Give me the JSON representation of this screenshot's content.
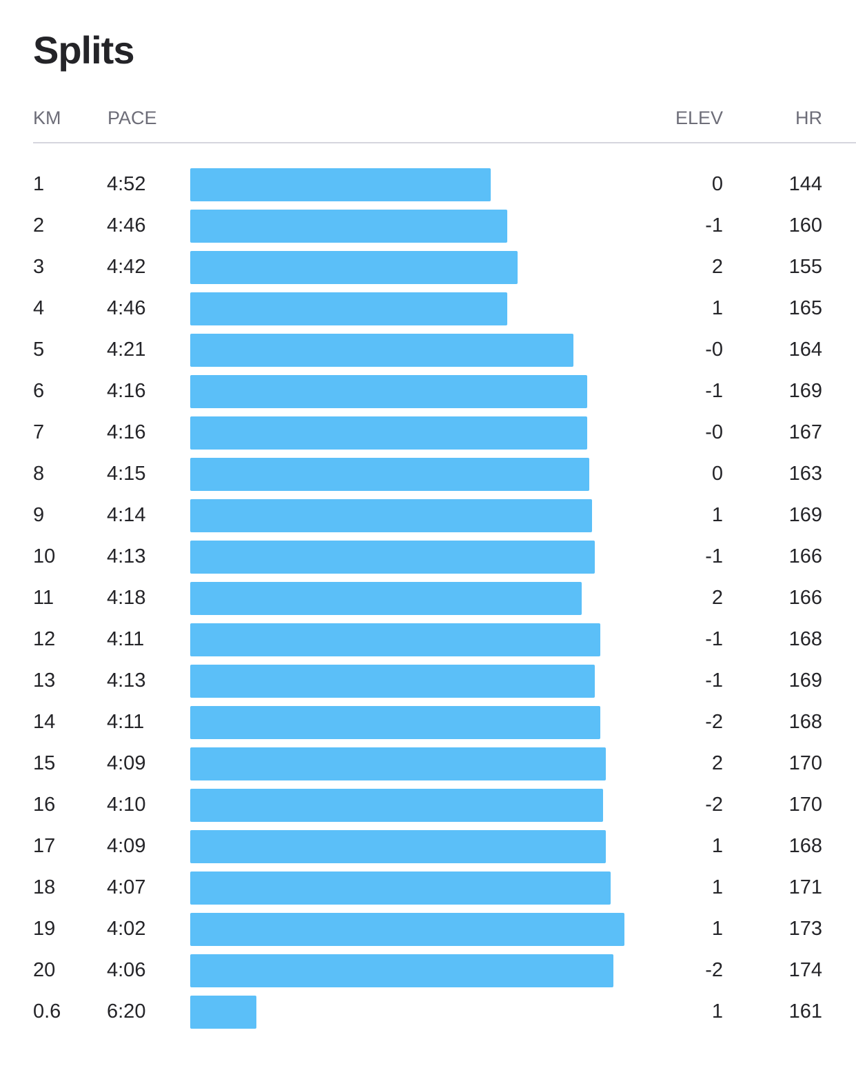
{
  "title": "Splits",
  "columns": {
    "km": "KM",
    "pace": "PACE",
    "elev": "ELEV",
    "hr": "HR"
  },
  "colors": {
    "bar": "#5bbff8",
    "text": "#242428",
    "muted": "#6d6d78",
    "divider": "#d5d5de"
  },
  "chart_data": {
    "type": "bar",
    "orientation": "horizontal",
    "categories": [
      "1",
      "2",
      "3",
      "4",
      "5",
      "6",
      "7",
      "8",
      "9",
      "10",
      "11",
      "12",
      "13",
      "14",
      "15",
      "16",
      "17",
      "18",
      "19",
      "20",
      "0.6"
    ],
    "pace_seconds": [
      292,
      286,
      282,
      286,
      261,
      256,
      256,
      255,
      254,
      253,
      258,
      251,
      253,
      251,
      249,
      250,
      249,
      247,
      242,
      246,
      380
    ],
    "series": [
      {
        "values": [
          292,
          286,
          282,
          286,
          261,
          256,
          256,
          255,
          254,
          253,
          258,
          251,
          253,
          251,
          249,
          250,
          249,
          247,
          242,
          246,
          380
        ]
      }
    ]
  },
  "splits": [
    {
      "km": "1",
      "pace": "4:52",
      "elev": "0",
      "hr": "144"
    },
    {
      "km": "2",
      "pace": "4:46",
      "elev": "-1",
      "hr": "160"
    },
    {
      "km": "3",
      "pace": "4:42",
      "elev": "2",
      "hr": "155"
    },
    {
      "km": "4",
      "pace": "4:46",
      "elev": "1",
      "hr": "165"
    },
    {
      "km": "5",
      "pace": "4:21",
      "elev": "-0",
      "hr": "164"
    },
    {
      "km": "6",
      "pace": "4:16",
      "elev": "-1",
      "hr": "169"
    },
    {
      "km": "7",
      "pace": "4:16",
      "elev": "-0",
      "hr": "167"
    },
    {
      "km": "8",
      "pace": "4:15",
      "elev": "0",
      "hr": "163"
    },
    {
      "km": "9",
      "pace": "4:14",
      "elev": "1",
      "hr": "169"
    },
    {
      "km": "10",
      "pace": "4:13",
      "elev": "-1",
      "hr": "166"
    },
    {
      "km": "11",
      "pace": "4:18",
      "elev": "2",
      "hr": "166"
    },
    {
      "km": "12",
      "pace": "4:11",
      "elev": "-1",
      "hr": "168"
    },
    {
      "km": "13",
      "pace": "4:13",
      "elev": "-1",
      "hr": "169"
    },
    {
      "km": "14",
      "pace": "4:11",
      "elev": "-2",
      "hr": "168"
    },
    {
      "km": "15",
      "pace": "4:09",
      "elev": "2",
      "hr": "170"
    },
    {
      "km": "16",
      "pace": "4:10",
      "elev": "-2",
      "hr": "170"
    },
    {
      "km": "17",
      "pace": "4:09",
      "elev": "1",
      "hr": "168"
    },
    {
      "km": "18",
      "pace": "4:07",
      "elev": "1",
      "hr": "171"
    },
    {
      "km": "19",
      "pace": "4:02",
      "elev": "1",
      "hr": "173"
    },
    {
      "km": "20",
      "pace": "4:06",
      "elev": "-2",
      "hr": "174"
    },
    {
      "km": "0.6",
      "pace": "6:20",
      "elev": "1",
      "hr": "161"
    }
  ]
}
